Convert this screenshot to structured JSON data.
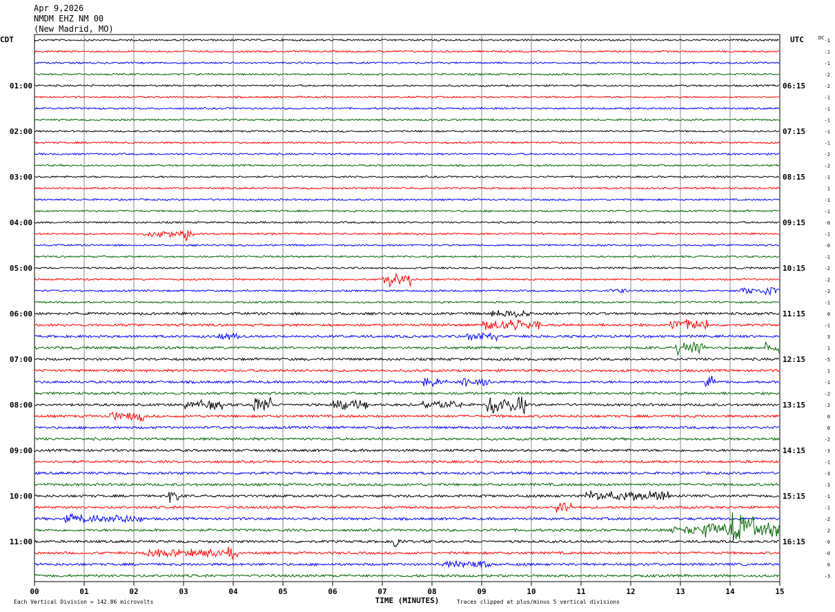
{
  "header": {
    "date": "Apr 9,2026",
    "station": "NMDM EHZ NM 00",
    "location": "(New Madrid, MO)"
  },
  "labels": {
    "left_tz": "CDT",
    "right_tz": "UTC",
    "dc": "DC",
    "xlabel": "TIME (MINUTES)",
    "footer_left": "Each Vertical Division =  142.86 microvolts",
    "footer_right": "Traces clipped at plus/minus 5 vertical divisions"
  },
  "colors": {
    "trace_cycle": [
      "#000000",
      "#ff0000",
      "#0000ff",
      "#006400"
    ],
    "grid": "#000000",
    "background": "#ffffff"
  },
  "chart_data": {
    "type": "line",
    "title": "NMDM EHZ NM 00",
    "xlabel": "TIME (MINUTES)",
    "xlim": [
      0,
      15
    ],
    "x_ticks": [
      "00",
      "01",
      "02",
      "03",
      "04",
      "05",
      "06",
      "07",
      "08",
      "09",
      "10",
      "11",
      "12",
      "13",
      "14",
      "15"
    ],
    "traces_per_hour": 4,
    "trace_count": 48,
    "left_hour_labels": [
      "01:00",
      "02:00",
      "03:00",
      "04:00",
      "05:00",
      "06:00",
      "07:00",
      "08:00",
      "09:00",
      "10:00",
      "11:00"
    ],
    "right_hour_labels": [
      "06:15",
      "07:15",
      "08:15",
      "09:15",
      "10:15",
      "11:15",
      "12:15",
      "13:15",
      "14:15",
      "15:15",
      "16:15"
    ],
    "dc_offsets": [
      "-1",
      "-1",
      "-1",
      "-2",
      "-2",
      "-1",
      "-1",
      "-1",
      "-1",
      "-1",
      "-2",
      "-2",
      "-1",
      "1",
      "-1",
      "-1",
      "-0",
      "-1",
      "-0",
      "-1",
      "-2",
      "-2",
      "-2",
      "-1",
      "0",
      "-1",
      "3",
      "1",
      "-5",
      "1",
      "-1",
      "-2",
      "-2",
      "0",
      "0",
      "-2",
      "-3",
      "-1",
      "-3",
      "-3",
      "-1",
      "-1",
      "-2",
      "2",
      "-0",
      "-0",
      "0",
      "-3"
    ],
    "events": [
      {
        "trace": 17,
        "start_min": 2.2,
        "end_min": 3.2,
        "amp": 0.5
      },
      {
        "trace": 17,
        "start_min": 3.0,
        "end_min": 3.1,
        "amp": 1.6
      },
      {
        "trace": 21,
        "start_min": 7.0,
        "end_min": 7.6,
        "amp": 1.2
      },
      {
        "trace": 22,
        "start_min": 11.5,
        "end_min": 11.9,
        "amp": 0.5
      },
      {
        "trace": 22,
        "start_min": 14.2,
        "end_min": 15.0,
        "amp": 0.7
      },
      {
        "trace": 24,
        "start_min": 9.2,
        "end_min": 10.0,
        "amp": 0.6
      },
      {
        "trace": 25,
        "start_min": 9.0,
        "end_min": 10.2,
        "amp": 0.9
      },
      {
        "trace": 25,
        "start_min": 12.8,
        "end_min": 13.6,
        "amp": 1.0
      },
      {
        "trace": 26,
        "start_min": 3.7,
        "end_min": 4.1,
        "amp": 0.5
      },
      {
        "trace": 26,
        "start_min": 8.7,
        "end_min": 9.3,
        "amp": 0.6
      },
      {
        "trace": 27,
        "start_min": 12.9,
        "end_min": 13.5,
        "amp": 1.4
      },
      {
        "trace": 27,
        "start_min": 14.7,
        "end_min": 15.0,
        "amp": 1.0
      },
      {
        "trace": 30,
        "start_min": 7.8,
        "end_min": 8.3,
        "amp": 0.8
      },
      {
        "trace": 30,
        "start_min": 8.6,
        "end_min": 9.2,
        "amp": 0.8
      },
      {
        "trace": 30,
        "start_min": 13.5,
        "end_min": 13.7,
        "amp": 1.0
      },
      {
        "trace": 32,
        "start_min": 3.0,
        "end_min": 3.8,
        "amp": 0.7
      },
      {
        "trace": 32,
        "start_min": 4.4,
        "end_min": 4.8,
        "amp": 1.4
      },
      {
        "trace": 32,
        "start_min": 6.0,
        "end_min": 6.7,
        "amp": 0.8
      },
      {
        "trace": 32,
        "start_min": 7.8,
        "end_min": 8.6,
        "amp": 0.6
      },
      {
        "trace": 32,
        "start_min": 9.1,
        "end_min": 9.9,
        "amp": 1.6
      },
      {
        "trace": 33,
        "start_min": 1.5,
        "end_min": 2.2,
        "amp": 0.7
      },
      {
        "trace": 40,
        "start_min": 2.7,
        "end_min": 2.9,
        "amp": 1.0
      },
      {
        "trace": 40,
        "start_min": 11.1,
        "end_min": 12.8,
        "amp": 0.8
      },
      {
        "trace": 41,
        "start_min": 10.5,
        "end_min": 10.8,
        "amp": 1.3
      },
      {
        "trace": 42,
        "start_min": 0.6,
        "end_min": 2.2,
        "amp": 0.7
      },
      {
        "trace": 43,
        "start_min": 12.8,
        "end_min": 13.5,
        "amp": 0.7
      },
      {
        "trace": 43,
        "start_min": 13.5,
        "end_min": 15.0,
        "amp": 1.5
      },
      {
        "trace": 43,
        "start_min": 14.0,
        "end_min": 14.5,
        "amp": 2.2
      },
      {
        "trace": 44,
        "start_min": 7.2,
        "end_min": 7.4,
        "amp": 1.0
      },
      {
        "trace": 45,
        "start_min": 2.2,
        "end_min": 3.8,
        "amp": 0.6
      },
      {
        "trace": 45,
        "start_min": 3.9,
        "end_min": 4.1,
        "amp": 1.3
      },
      {
        "trace": 46,
        "start_min": 8.2,
        "end_min": 9.2,
        "amp": 0.5
      }
    ]
  }
}
